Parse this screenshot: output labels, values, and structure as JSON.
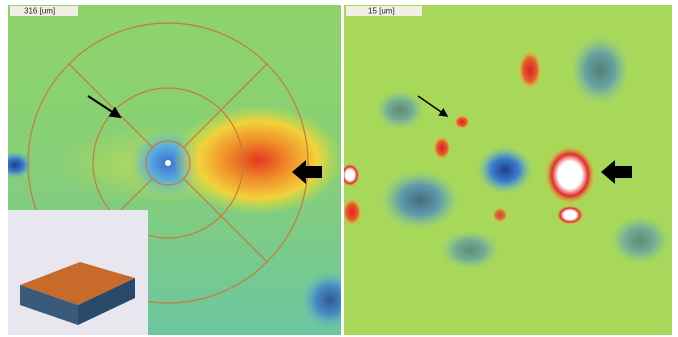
{
  "panels": [
    {
      "label": "316 [um]"
    },
    {
      "label": "15 [um]"
    }
  ]
}
